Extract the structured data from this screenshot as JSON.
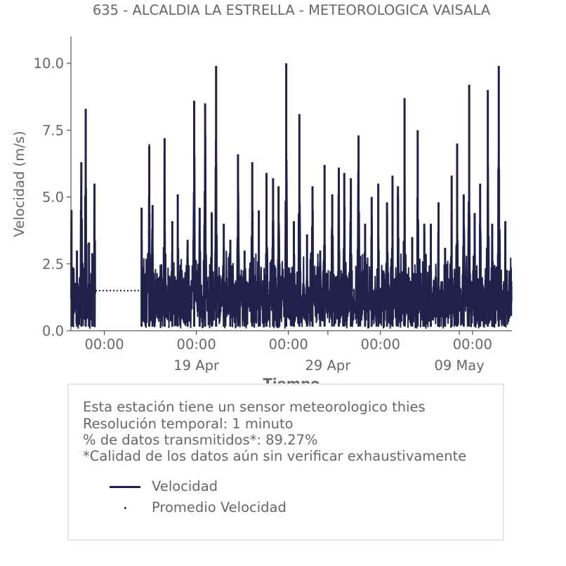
{
  "chart_data": {
    "type": "line",
    "title": "635 - ALCALDIA LA ESTRELLA - METEOROLOGICA VAISALA",
    "xlabel": "Tiempo",
    "ylabel": "Velocidad (m/s)",
    "ylim": [
      0,
      11
    ],
    "xlim": [
      "2023-04-09T11:00",
      "2023-05-13T00:00"
    ],
    "yticks": [
      0,
      2.5,
      5,
      7.5,
      10
    ],
    "ytick_labels": [
      "0.0",
      "2.5",
      "5.0",
      "7.5",
      "10.0"
    ],
    "xticks": [
      {
        "t": "2023-04-12T00:00",
        "label": "00:00",
        "sublabel": ""
      },
      {
        "t": "2023-04-19T00:00",
        "label": "00:00",
        "sublabel": "19 Apr"
      },
      {
        "t": "2023-04-26T00:00",
        "label": "00:00",
        "sublabel": ""
      },
      {
        "t": "2023-04-29T00:00",
        "label": "",
        "sublabel": "29 Apr"
      },
      {
        "t": "2023-05-03T00:00",
        "label": "00:00",
        "sublabel": ""
      },
      {
        "t": "2023-05-09T00:00",
        "label": "",
        "sublabel": "09 May"
      },
      {
        "t": "2023-05-10T00:00",
        "label": "00:00",
        "sublabel": ""
      }
    ],
    "gaps": [
      [
        "2023-04-11T08:00",
        "2023-04-14T20:00"
      ]
    ],
    "series": [
      {
        "name": "Velocidad",
        "color": "#20204a",
        "style": "solid",
        "daily_peaks": [
          [
            "2023-04-09T12:00",
            4.5
          ],
          [
            "2023-04-09T22:00",
            3.0
          ],
          [
            "2023-04-10T06:00",
            6.3
          ],
          [
            "2023-04-10T14:00",
            8.3
          ],
          [
            "2023-04-10T20:00",
            3.3
          ],
          [
            "2023-04-11T02:00",
            2.9
          ],
          [
            "2023-04-11T06:00",
            5.5
          ],
          [
            "2023-04-14T20:00",
            4.6
          ],
          [
            "2023-04-15T10:00",
            6.9
          ],
          [
            "2023-04-15T16:00",
            4.7
          ],
          [
            "2023-04-16T14:00",
            7.2
          ],
          [
            "2023-04-17T04:00",
            4.1
          ],
          [
            "2023-04-17T14:00",
            5.1
          ],
          [
            "2023-04-18T08:00",
            3.4
          ],
          [
            "2023-04-18T20:00",
            8.6
          ],
          [
            "2023-04-19T06:00",
            4.6
          ],
          [
            "2023-04-19T16:00",
            8.5
          ],
          [
            "2023-04-20T04:00",
            4.4
          ],
          [
            "2023-04-20T12:00",
            9.9
          ],
          [
            "2023-04-21T02:00",
            4.0
          ],
          [
            "2023-04-21T14:00",
            3.4
          ],
          [
            "2023-04-22T04:00",
            6.6
          ],
          [
            "2023-04-22T16:00",
            3.0
          ],
          [
            "2023-04-23T06:00",
            6.3
          ],
          [
            "2023-04-23T18:00",
            4.5
          ],
          [
            "2023-04-24T08:00",
            5.9
          ],
          [
            "2023-04-24T20:00",
            5.7
          ],
          [
            "2023-04-25T06:00",
            5.4
          ],
          [
            "2023-04-25T20:00",
            10.0
          ],
          [
            "2023-04-26T10:00",
            4.1
          ],
          [
            "2023-04-26T20:00",
            8.1
          ],
          [
            "2023-04-27T10:00",
            3.6
          ],
          [
            "2023-04-27T20:00",
            5.4
          ],
          [
            "2023-04-28T10:00",
            3.0
          ],
          [
            "2023-04-28T18:00",
            6.2
          ],
          [
            "2023-04-29T08:00",
            5.1
          ],
          [
            "2023-04-29T20:00",
            6.1
          ],
          [
            "2023-04-30T06:00",
            5.9
          ],
          [
            "2023-04-30T18:00",
            5.7
          ],
          [
            "2023-05-01T08:00",
            7.3
          ],
          [
            "2023-05-01T20:00",
            4.0
          ],
          [
            "2023-05-02T08:00",
            5.0
          ],
          [
            "2023-05-02T20:00",
            5.5
          ],
          [
            "2023-05-03T12:00",
            4.8
          ],
          [
            "2023-05-03T22:00",
            5.8
          ],
          [
            "2023-05-04T08:00",
            5.4
          ],
          [
            "2023-05-04T20:00",
            8.7
          ],
          [
            "2023-05-05T10:00",
            3.5
          ],
          [
            "2023-05-05T20:00",
            7.5
          ],
          [
            "2023-05-06T08:00",
            4.0
          ],
          [
            "2023-05-06T20:00",
            4.0
          ],
          [
            "2023-05-07T10:00",
            4.8
          ],
          [
            "2023-05-07T22:00",
            3.1
          ],
          [
            "2023-05-08T10:00",
            5.8
          ],
          [
            "2023-05-08T20:00",
            7.0
          ],
          [
            "2023-05-09T08:00",
            5.1
          ],
          [
            "2023-05-09T18:00",
            9.2
          ],
          [
            "2023-05-10T04:00",
            4.4
          ],
          [
            "2023-05-10T14:00",
            5.5
          ],
          [
            "2023-05-11T04:00",
            9.0
          ],
          [
            "2023-05-11T12:00",
            4.0
          ],
          [
            "2023-05-12T00:00",
            9.9
          ],
          [
            "2023-05-12T12:00",
            4.1
          ]
        ]
      },
      {
        "name": "Promedio Velocidad",
        "color": "#20204a",
        "style": "dotted",
        "value": 1.5
      }
    ]
  },
  "info": {
    "lines": [
      "Esta estación tiene un sensor meteorologico thies",
      "Resolución temporal: 1 minuto",
      "% de datos transmitidos*: 89.27%",
      "*Calidad de los datos aún sin verificar exhaustivamente"
    ]
  }
}
